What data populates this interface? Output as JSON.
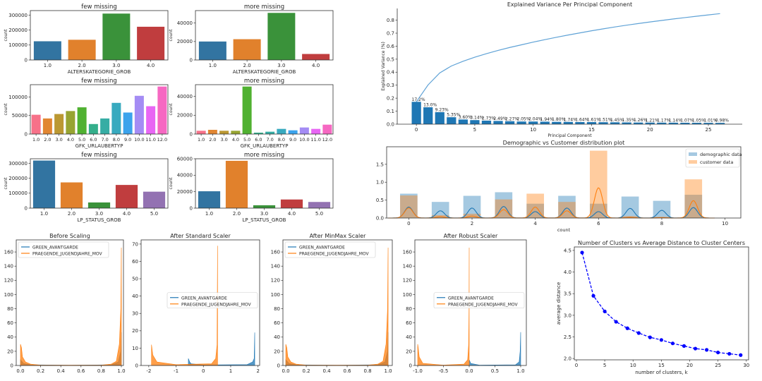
{
  "colors": {
    "seaborn_deep": [
      "#3274a1",
      "#e1812c",
      "#3a923a",
      "#c03d3e",
      "#9372b2"
    ],
    "husl12": [
      "#f77189",
      "#e18632",
      "#bb9832",
      "#97a431",
      "#50b131",
      "#34af8b",
      "#36ada4",
      "#38aabf",
      "#3ba3ec",
      "#a48cf4",
      "#e866f4",
      "#f668c2"
    ],
    "blue": "#1f77b4",
    "orange": "#ff7f0e",
    "elbow": "#0000ff"
  },
  "chart_data": [
    {
      "type": "bar",
      "title": "few missing",
      "xlabel": "ALTERSKATEGORIE_GROB",
      "ylabel": "count",
      "categories": [
        "1.0",
        "2.0",
        "3.0",
        "4.0"
      ],
      "values": [
        125000,
        135000,
        310000,
        222000
      ],
      "ylim": [
        0,
        330000
      ],
      "yticks": [
        "0",
        "100000",
        "200000",
        "300000"
      ],
      "palette": "seaborn_deep"
    },
    {
      "type": "bar",
      "title": "more missing",
      "xlabel": "ALTERSKATEGORIE_GROB",
      "ylabel": "count",
      "categories": [
        "1.0",
        "2.0",
        "3.0",
        "4.0"
      ],
      "values": [
        20000,
        22500,
        51000,
        6500
      ],
      "ylim": [
        0,
        53500
      ],
      "yticks": [
        "0",
        "20000",
        "40000"
      ],
      "palette": "seaborn_deep"
    },
    {
      "type": "bar",
      "title": "few missing",
      "xlabel": "GFK_URLAUBERTYP",
      "ylabel": "count",
      "categories": [
        "1.0",
        "2.0",
        "3.0",
        "4.0",
        "5.0",
        "6.0",
        "7.0",
        "8.0",
        "9.0",
        "10.0",
        "11.0",
        "12.0"
      ],
      "values": [
        52000,
        42000,
        54000,
        62000,
        72000,
        27000,
        42000,
        84000,
        58000,
        103000,
        75000,
        128000
      ],
      "ylim": [
        0,
        133000
      ],
      "yticks": [
        "0",
        "50000",
        "100000"
      ],
      "palette": "husl12"
    },
    {
      "type": "bar",
      "title": "more missing",
      "xlabel": "GFK_URLAUBERTYP",
      "ylabel": "count",
      "categories": [
        "1.0",
        "2.0",
        "3.0",
        "4.0",
        "5.0",
        "6.0",
        "7.0",
        "8.0",
        "9.0",
        "10.0",
        "11.0",
        "12.0"
      ],
      "values": [
        3500,
        4500,
        3500,
        3500,
        50500,
        1500,
        2500,
        5500,
        4000,
        7000,
        5500,
        10000
      ],
      "ylim": [
        0,
        52500
      ],
      "yticks": [
        "0",
        "20000",
        "40000"
      ],
      "palette": "husl12"
    },
    {
      "type": "bar",
      "title": "few missing",
      "xlabel": "LP_STATUS_GROB",
      "ylabel": "count",
      "categories": [
        "1.0",
        "2.0",
        "3.0",
        "4.0",
        "5.0"
      ],
      "values": [
        318000,
        172000,
        38000,
        155000,
        110000
      ],
      "ylim": [
        0,
        330000
      ],
      "yticks": [
        "0",
        "100000",
        "200000",
        "300000"
      ],
      "palette": "seaborn_deep"
    },
    {
      "type": "bar",
      "title": "more missing",
      "xlabel": "LP_STATUS_GROB",
      "ylabel": "count",
      "categories": [
        "1.0",
        "2.0",
        "3.0",
        "4.0",
        "5.0"
      ],
      "values": [
        20500,
        57500,
        3500,
        10500,
        7500
      ],
      "ylim": [
        0,
        60000
      ],
      "yticks": [
        "0",
        "20000",
        "40000",
        "60000"
      ],
      "palette": "seaborn_deep"
    },
    {
      "type": "bar",
      "title": "Explained Variance Per Principal Component",
      "xlabel": "Principal Component",
      "ylabel": "Explained Variance (%)",
      "x": [
        0,
        1,
        2,
        3,
        4,
        5,
        6,
        7,
        8,
        9,
        10,
        11,
        12,
        13,
        14,
        15,
        16,
        17,
        18,
        19,
        20,
        21,
        22,
        23,
        24,
        25,
        26
      ],
      "values": [
        0.172,
        0.13,
        0.0923,
        0.0535,
        0.036,
        0.0314,
        0.0273,
        0.0249,
        0.0227,
        0.0205,
        0.0204,
        0.0194,
        0.018,
        0.0174,
        0.0164,
        0.0161,
        0.0151,
        0.0145,
        0.0135,
        0.0126,
        0.0121,
        0.0117,
        0.0114,
        0.0107,
        0.0105,
        0.0101,
        0.0098
      ],
      "labels": [
        "17.2%",
        "13.0%",
        "9.23%",
        "5.35%",
        "3.60%",
        "3.14%",
        "2.73%",
        "2.49%",
        "2.27%",
        "2.05%",
        "2.04%",
        "1.94%",
        "1.80%",
        "1.74%",
        "1.64%",
        "1.61%",
        "1.51%",
        "1.45%",
        "1.35%",
        "1.26%",
        "1.21%",
        "1.17%",
        "1.14%",
        "1.07%",
        "1.05%",
        "1.01%",
        "0.98%"
      ],
      "cumulative_line": true,
      "xlim": [
        -1.64,
        27.9
      ],
      "ylim": [
        0,
        0.89
      ],
      "xticks": [
        "0",
        "5",
        "10",
        "15",
        "20",
        "25"
      ],
      "yticks": [
        "0.0",
        "0.1",
        "0.2",
        "0.3",
        "0.4",
        "0.5",
        "0.6",
        "0.7",
        "0.8"
      ]
    },
    {
      "type": "bar",
      "title": "Demographic vs Customer distribution plot",
      "xlabel": "count",
      "x": [
        0,
        1,
        2,
        3,
        4,
        5,
        6,
        7,
        8,
        9
      ],
      "series": [
        {
          "name": "demographic data",
          "values": [
            0.68,
            0.45,
            0.62,
            0.72,
            0.4,
            0.62,
            0.4,
            0.6,
            0.48,
            0.65
          ],
          "color": "#1f77b4"
        },
        {
          "name": "customer data",
          "values": [
            0.63,
            0.08,
            0.12,
            0.52,
            0.68,
            0.45,
            1.88,
            0.05,
            0.03,
            1.08
          ],
          "color": "#ff7f0e"
        }
      ],
      "kde": true,
      "legend": "top-right",
      "xlim": [
        -0.7,
        10.5
      ],
      "ylim": [
        0,
        1.99
      ],
      "xticks": [
        "0",
        "2",
        "4",
        "6",
        "8",
        "10"
      ],
      "yticks": [
        "0.0",
        "0.5",
        "1.0",
        "1.5"
      ]
    },
    {
      "type": "area",
      "title": "Before Scaling",
      "legend": "upper-left",
      "series": [
        {
          "name": "GREEN_AVANTGARDE",
          "points": [
            [
              0,
              8
            ],
            [
              0.03,
              3
            ],
            [
              0.1,
              1
            ],
            [
              0.5,
              0.3
            ],
            [
              0.9,
              1
            ],
            [
              0.97,
              5
            ],
            [
              0.995,
              20
            ],
            [
              1.0,
              47
            ]
          ]
        },
        {
          "name": "PRAEGENDE_JUGENDJAHRE_MOV",
          "points": [
            [
              0,
              30
            ],
            [
              0.01,
              25
            ],
            [
              0.02,
              12
            ],
            [
              0.05,
              5
            ],
            [
              0.1,
              2
            ],
            [
              0.2,
              0.5
            ],
            [
              0.8,
              0.5
            ],
            [
              0.9,
              2
            ],
            [
              0.95,
              6
            ],
            [
              0.98,
              30
            ],
            [
              0.995,
              80
            ],
            [
              1.0,
              166
            ]
          ]
        }
      ],
      "xlim": [
        -0.042,
        1.021
      ],
      "ylim": [
        0,
        177
      ],
      "xticks": [
        "0.0",
        "0.2",
        "0.4",
        "0.6",
        "0.8",
        "1.0"
      ],
      "yticks": [
        "0",
        "20",
        "40",
        "60",
        "80",
        "100",
        "120",
        "140",
        "160"
      ]
    },
    {
      "type": "area",
      "title": "After Standard Scaler",
      "legend": "center-right",
      "series": [
        {
          "name": "GREEN_AVANTGARDE",
          "points": [
            [
              -0.55,
              4
            ],
            [
              -0.5,
              2
            ],
            [
              -0.45,
              1
            ],
            [
              0,
              0.3
            ],
            [
              1.6,
              0.5
            ],
            [
              1.8,
              2
            ],
            [
              1.86,
              4
            ],
            [
              1.88,
              19
            ]
          ]
        },
        {
          "name": "PRAEGENDE_JUGENDJAHRE_MOV",
          "points": [
            [
              -1.9,
              12
            ],
            [
              -1.85,
              6
            ],
            [
              -1.7,
              2
            ],
            [
              -1,
              0.5
            ],
            [
              0.3,
              1
            ],
            [
              0.45,
              4
            ],
            [
              0.5,
              12
            ],
            [
              0.52,
              69
            ]
          ]
        }
      ],
      "xlim": [
        -2.28,
        2.06
      ],
      "ylim": [
        0,
        72.4
      ],
      "xticks": [
        "-2",
        "-1",
        "0",
        "1",
        "2"
      ],
      "yticks": [
        "0",
        "10",
        "20",
        "30",
        "40",
        "50",
        "60",
        "70"
      ]
    },
    {
      "type": "area",
      "title": "After MinMax Scaler",
      "legend": "upper-left",
      "series": [
        {
          "name": "GREEN_AVANTGARDE",
          "points": [
            [
              0,
              8
            ],
            [
              0.03,
              3
            ],
            [
              0.1,
              1
            ],
            [
              0.5,
              0.3
            ],
            [
              0.9,
              1
            ],
            [
              0.97,
              5
            ],
            [
              0.995,
              20
            ],
            [
              1.0,
              47
            ]
          ]
        },
        {
          "name": "PRAEGENDE_JUGENDJAHRE_MOV",
          "points": [
            [
              0,
              30
            ],
            [
              0.01,
              25
            ],
            [
              0.02,
              12
            ],
            [
              0.05,
              5
            ],
            [
              0.1,
              2
            ],
            [
              0.2,
              0.5
            ],
            [
              0.8,
              0.5
            ],
            [
              0.9,
              2
            ],
            [
              0.95,
              6
            ],
            [
              0.98,
              30
            ],
            [
              0.995,
              80
            ],
            [
              1.0,
              166
            ]
          ]
        }
      ],
      "xlim": [
        -0.028,
        1.041
      ],
      "ylim": [
        0,
        177
      ],
      "xticks": [
        "0.0",
        "0.2",
        "0.4",
        "0.6",
        "0.8",
        "1.0"
      ],
      "yticks": [
        "0",
        "20",
        "40",
        "60",
        "80",
        "100",
        "120",
        "140",
        "160"
      ]
    },
    {
      "type": "area",
      "title": "After Robust Scaler",
      "legend": "center-right",
      "series": [
        {
          "name": "GREEN_AVANTGARDE",
          "points": [
            [
              0,
              8
            ],
            [
              0.03,
              3
            ],
            [
              0.2,
              0.5
            ],
            [
              0.9,
              1
            ],
            [
              0.97,
              5
            ],
            [
              0.99,
              20
            ],
            [
              1.0,
              47
            ]
          ]
        },
        {
          "name": "PRAEGENDE_JUGENDJAHRE_MOV",
          "points": [
            [
              -1,
              30
            ],
            [
              -0.99,
              25
            ],
            [
              -0.97,
              12
            ],
            [
              -0.9,
              3
            ],
            [
              -0.5,
              0.5
            ],
            [
              -0.1,
              2
            ],
            [
              -0.03,
              8
            ],
            [
              -0.01,
              30
            ],
            [
              -0.003,
              80
            ],
            [
              0,
              166
            ]
          ]
        }
      ],
      "xlim": [
        -1.055,
        1.11
      ],
      "ylim": [
        0,
        177
      ],
      "xticks": [
        "-1.0",
        "-0.5",
        "0.0",
        "0.5",
        "1.0"
      ],
      "yticks": [
        "0",
        "20",
        "40",
        "60",
        "80",
        "100",
        "120",
        "140",
        "160"
      ]
    },
    {
      "type": "line",
      "title": "Number of Clusters vs Average Distance to Cluster Centers",
      "xlabel": "number of clusters, k",
      "ylabel": "average distance",
      "x": [
        1,
        3,
        5,
        7,
        9,
        11,
        13,
        15,
        17,
        19,
        21,
        23,
        25,
        27,
        29
      ],
      "values": [
        4.45,
        3.45,
        3.09,
        2.85,
        2.7,
        2.59,
        2.49,
        2.43,
        2.35,
        2.29,
        2.23,
        2.2,
        2.14,
        2.11,
        2.08
      ],
      "line_style": "dashed",
      "marker": "circle",
      "xlim": [
        -0.37,
        30.4
      ],
      "ylim": [
        1.97,
        4.58
      ],
      "xticks": [
        "0",
        "5",
        "10",
        "15",
        "20",
        "25",
        "30"
      ],
      "yticks": [
        "2.0",
        "2.5",
        "3.0",
        "3.5",
        "4.0",
        "4.5"
      ]
    }
  ]
}
